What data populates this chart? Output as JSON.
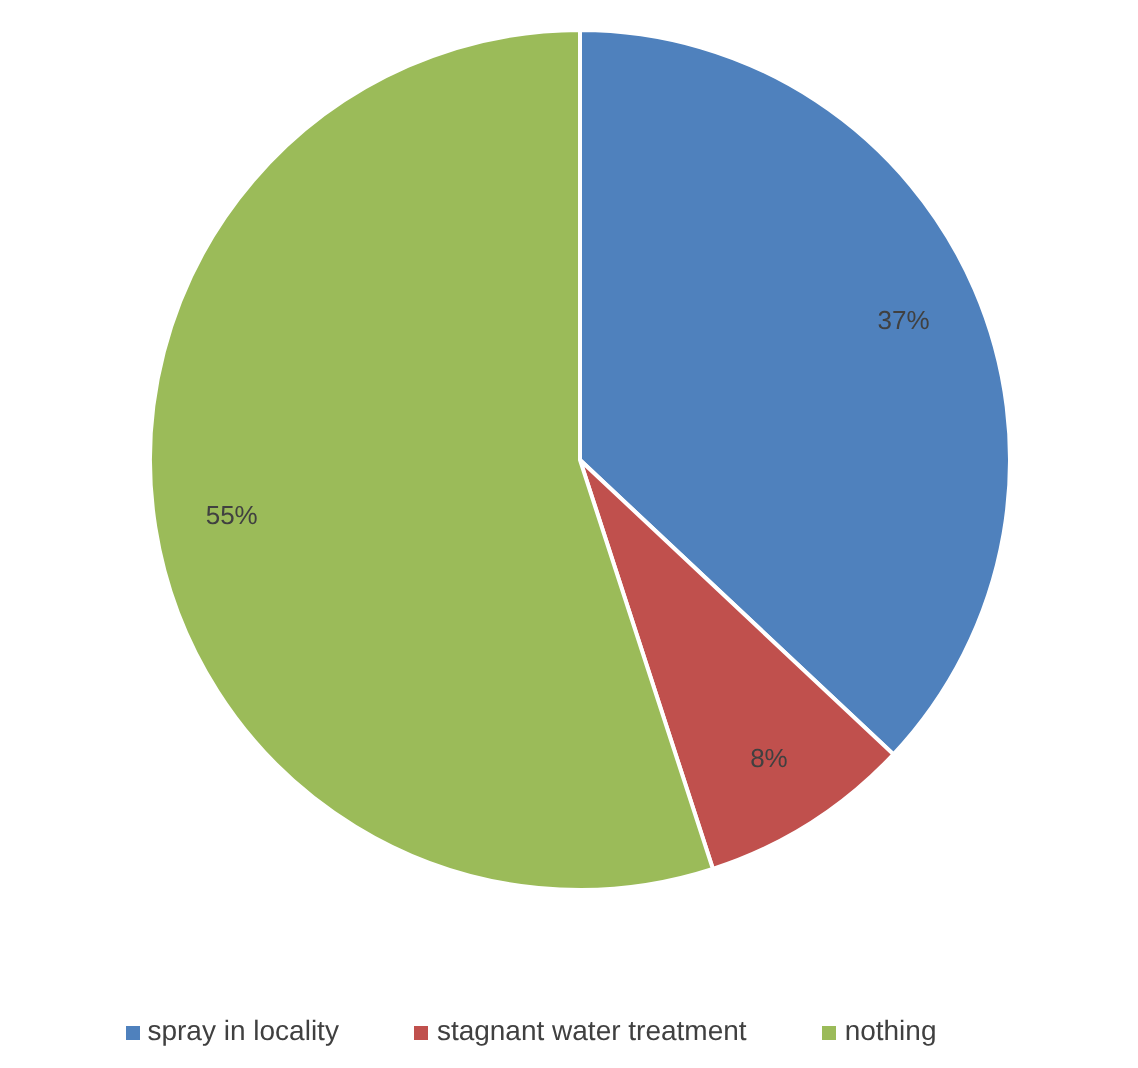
{
  "chart_data": {
    "type": "pie",
    "categories": [
      "spray in locality",
      "stagnant water treatment",
      "nothing"
    ],
    "values": [
      37,
      8,
      55
    ],
    "colors": [
      "#4f81bd",
      "#c0504d",
      "#9bbb59"
    ],
    "value_labels": [
      "37%",
      "8%",
      "55%"
    ],
    "legend": "bottom"
  }
}
